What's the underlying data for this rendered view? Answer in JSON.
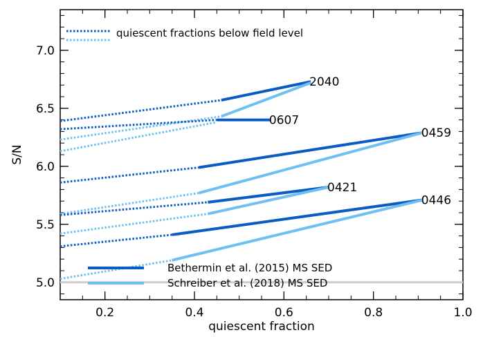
{
  "chart_data": {
    "type": "line",
    "xlabel": "quiescent fraction",
    "ylabel": "S/N",
    "xlim": [
      0.1,
      1.0
    ],
    "ylim": [
      4.85,
      7.35
    ],
    "xticks": [
      {
        "value": 0.2,
        "label": "0.2"
      },
      {
        "value": 0.4,
        "label": "0.4"
      },
      {
        "value": 0.6,
        "label": "0.6"
      },
      {
        "value": 0.8,
        "label": "0.8"
      },
      {
        "value": 1.0,
        "label": "1.0"
      }
    ],
    "yticks": [
      {
        "value": 5.0,
        "label": "5.0"
      },
      {
        "value": 5.5,
        "label": "5.5"
      },
      {
        "value": 6.0,
        "label": "6.0"
      },
      {
        "value": 6.5,
        "label": "6.5"
      },
      {
        "value": 7.0,
        "label": "7.0"
      }
    ],
    "x_minor_step": 0.05,
    "y_minor_step": 0.1,
    "reference_line": {
      "y": 5.0,
      "color": "#cccccc"
    },
    "legend": {
      "position": "bottom-left",
      "entries": [
        {
          "label": "Bethermin et al. (2015) MS SED",
          "color": "#0a5cc4"
        },
        {
          "label": "Schreiber et al. (2018) MS SED",
          "color": "#6fc0f0"
        }
      ],
      "note": "quiescent fractions below field level"
    },
    "series": [
      {
        "cluster": "2040",
        "sed": "Bethermin",
        "color": "#0a5cc4",
        "x": [
          0.1,
          0.46,
          0.66
        ],
        "y": [
          6.39,
          6.57,
          6.73
        ],
        "field_level": 0.46,
        "label": "2040"
      },
      {
        "cluster": "2040",
        "sed": "Schreiber",
        "color": "#6fc0f0",
        "x": [
          0.1,
          0.46,
          0.66
        ],
        "y": [
          6.23,
          6.43,
          6.72
        ],
        "field_level": 0.46,
        "label": ""
      },
      {
        "cluster": "0607",
        "sed": "Bethermin",
        "color": "#0a5cc4",
        "x": [
          0.1,
          0.45,
          0.57
        ],
        "y": [
          6.32,
          6.4,
          6.4
        ],
        "field_level": 0.45,
        "label": "0607"
      },
      {
        "cluster": "0607",
        "sed": "Schreiber",
        "color": "#6fc0f0",
        "x": [
          0.1,
          0.45
        ],
        "y": [
          6.13,
          6.38
        ],
        "field_level": 0.45,
        "label": ""
      },
      {
        "cluster": "0459",
        "sed": "Bethermin",
        "color": "#0a5cc4",
        "x": [
          0.1,
          0.41,
          0.91
        ],
        "y": [
          5.86,
          5.99,
          6.29
        ],
        "field_level": 0.41,
        "label": "0459"
      },
      {
        "cluster": "0459",
        "sed": "Schreiber",
        "color": "#6fc0f0",
        "x": [
          0.1,
          0.41,
          0.91
        ],
        "y": [
          5.59,
          5.77,
          6.29
        ],
        "field_level": 0.41,
        "label": ""
      },
      {
        "cluster": "0421",
        "sed": "Bethermin",
        "color": "#0a5cc4",
        "x": [
          0.1,
          0.43,
          0.7
        ],
        "y": [
          5.58,
          5.69,
          5.82
        ],
        "field_level": 0.43,
        "label": "0421"
      },
      {
        "cluster": "0421",
        "sed": "Schreiber",
        "color": "#6fc0f0",
        "x": [
          0.1,
          0.43,
          0.7
        ],
        "y": [
          5.42,
          5.59,
          5.82
        ],
        "field_level": 0.43,
        "label": ""
      },
      {
        "cluster": "0446",
        "sed": "Bethermin",
        "color": "#0a5cc4",
        "x": [
          0.1,
          0.35,
          0.91
        ],
        "y": [
          5.31,
          5.41,
          5.71
        ],
        "field_level": 0.35,
        "label": "0446"
      },
      {
        "cluster": "0446",
        "sed": "Schreiber",
        "color": "#6fc0f0",
        "x": [
          0.1,
          0.35,
          0.91
        ],
        "y": [
          5.03,
          5.19,
          5.71
        ],
        "field_level": 0.35,
        "label": ""
      }
    ]
  }
}
